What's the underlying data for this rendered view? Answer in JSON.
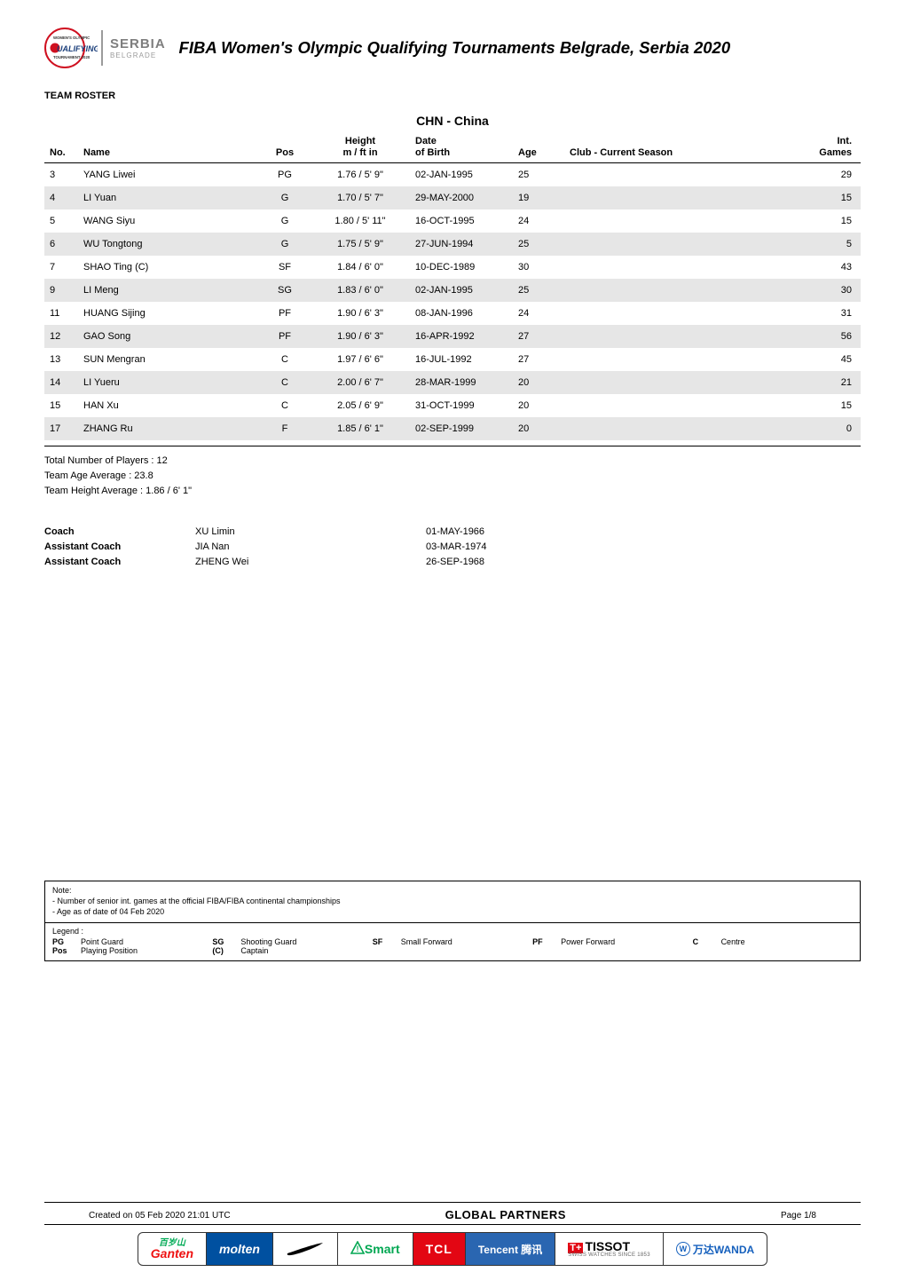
{
  "header": {
    "title": "FIBA Women's Olympic Qualifying Tournaments Belgrade, Serbia 2020",
    "logo": {
      "line1_small": "WOMEN'S OLYMPIC",
      "line2_big": "UALIFYING",
      "line3_small": "TOURNAMENT 2020",
      "country": "SERBIA",
      "city": "BELGRADE"
    }
  },
  "section_label": "TEAM ROSTER",
  "team_heading": "CHN - China",
  "columns": {
    "no": "No.",
    "name": "Name",
    "pos": "Pos",
    "height": "Height\nm / ft in",
    "dob": "Date\nof Birth",
    "age": "Age",
    "club": "Club - Current Season",
    "games": "Int.\nGames"
  },
  "roster": [
    {
      "no": "3",
      "name": "YANG Liwei",
      "pos": "PG",
      "height": "1.76 / 5' 9\"",
      "dob": "02-JAN-1995",
      "age": "25",
      "club": "",
      "games": "29"
    },
    {
      "no": "4",
      "name": "LI Yuan",
      "pos": "G",
      "height": "1.70 / 5' 7\"",
      "dob": "29-MAY-2000",
      "age": "19",
      "club": "",
      "games": "15"
    },
    {
      "no": "5",
      "name": "WANG Siyu",
      "pos": "G",
      "height": "1.80 / 5' 11\"",
      "dob": "16-OCT-1995",
      "age": "24",
      "club": "",
      "games": "15"
    },
    {
      "no": "6",
      "name": "WU Tongtong",
      "pos": "G",
      "height": "1.75 / 5' 9\"",
      "dob": "27-JUN-1994",
      "age": "25",
      "club": "",
      "games": "5"
    },
    {
      "no": "7",
      "name": "SHAO Ting (C)",
      "pos": "SF",
      "height": "1.84 / 6' 0\"",
      "dob": "10-DEC-1989",
      "age": "30",
      "club": "",
      "games": "43"
    },
    {
      "no": "9",
      "name": "LI Meng",
      "pos": "SG",
      "height": "1.83 / 6' 0\"",
      "dob": "02-JAN-1995",
      "age": "25",
      "club": "",
      "games": "30"
    },
    {
      "no": "11",
      "name": "HUANG Sijing",
      "pos": "PF",
      "height": "1.90 / 6' 3\"",
      "dob": "08-JAN-1996",
      "age": "24",
      "club": "",
      "games": "31"
    },
    {
      "no": "12",
      "name": "GAO Song",
      "pos": "PF",
      "height": "1.90 / 6' 3\"",
      "dob": "16-APR-1992",
      "age": "27",
      "club": "",
      "games": "56"
    },
    {
      "no": "13",
      "name": "SUN Mengran",
      "pos": "C",
      "height": "1.97 / 6' 6\"",
      "dob": "16-JUL-1992",
      "age": "27",
      "club": "",
      "games": "45"
    },
    {
      "no": "14",
      "name": "LI Yueru",
      "pos": "C",
      "height": "2.00 / 6' 7\"",
      "dob": "28-MAR-1999",
      "age": "20",
      "club": "",
      "games": "21"
    },
    {
      "no": "15",
      "name": "HAN Xu",
      "pos": "C",
      "height": "2.05 / 6' 9\"",
      "dob": "31-OCT-1999",
      "age": "20",
      "club": "",
      "games": "15"
    },
    {
      "no": "17",
      "name": "ZHANG Ru",
      "pos": "F",
      "height": "1.85 / 6' 1\"",
      "dob": "02-SEP-1999",
      "age": "20",
      "club": "",
      "games": "0"
    }
  ],
  "summary": {
    "total_players": "Total Number of Players : 12",
    "team_age_avg": "Team Age Average : 23.8",
    "team_height_avg": "Team Height Average : 1.86 / 6' 1\""
  },
  "coaches": [
    {
      "role": "Coach",
      "name": "XU Limin",
      "date": "01-MAY-1966"
    },
    {
      "role": "Assistant Coach",
      "name": "JIA Nan",
      "date": "03-MAR-1974"
    },
    {
      "role": "Assistant Coach",
      "name": "ZHENG Wei",
      "date": "26-SEP-1968"
    }
  ],
  "note": {
    "title": "Note:",
    "line1": "- Number of senior int. games at the official FIBA/FIBA continental championships",
    "line2": "- Age as of date of 04 Feb 2020"
  },
  "legend": {
    "title": "Legend :",
    "items": [
      {
        "abbr": "PG",
        "desc": "Point Guard"
      },
      {
        "abbr": "SG",
        "desc": "Shooting Guard"
      },
      {
        "abbr": "SF",
        "desc": "Small Forward"
      },
      {
        "abbr": "PF",
        "desc": "Power Forward"
      },
      {
        "abbr": "C",
        "desc": "Centre"
      },
      {
        "abbr": "Pos",
        "desc": "Playing Position"
      },
      {
        "abbr": "(C)",
        "desc": "Captain"
      }
    ]
  },
  "footer": {
    "created": "Created on 05 Feb 2020 21:01 UTC",
    "global_partners": "GLOBAL PARTNERS",
    "page": "Page 1/8",
    "partners": {
      "ganten_cn": "百岁山",
      "ganten": "Ganten",
      "molten": "molten",
      "smart": "Smart",
      "tcl": "TCL",
      "tencent": "Tencent 腾讯",
      "tissot": "TISSOT",
      "tissot_sub": "SWISS WATCHES SINCE 1853",
      "wanda": "万达WANDA"
    }
  },
  "colors": {
    "row_alt_bg": "#e6e6e6",
    "text": "#000000",
    "logo_grey": "#7e7e7e",
    "molten_bg": "#0050a0",
    "tcl_bg": "#e30613",
    "tencent_bg": "#2a66b1",
    "smart_green": "#00a752",
    "wanda_blue": "#1560bd"
  }
}
